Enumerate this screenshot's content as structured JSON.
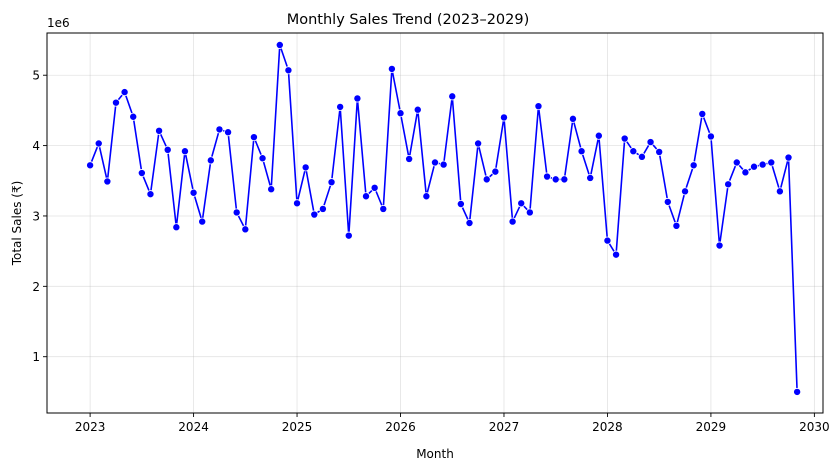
{
  "chart_data": {
    "type": "line",
    "title": "Monthly Sales Trend (2023–2029)",
    "xlabel": "Month",
    "ylabel": "Total Sales (₹)",
    "y_offset_label": "1e6",
    "x_tick_labels": [
      "2023",
      "2024",
      "2025",
      "2026",
      "2027",
      "2028",
      "2029",
      "2030"
    ],
    "y_tick_labels": [
      "1",
      "2",
      "3",
      "4",
      "5"
    ],
    "x_start": "2023-01",
    "xlim": [
      "2022-08",
      "2030-02"
    ],
    "ylim": [
      0.2,
      5.6
    ],
    "y_unit_multiplier": 1000000,
    "grid": true,
    "line_color": "#0000ff",
    "marker_color": "#0000ff",
    "series": [
      {
        "values": [
          3.72,
          4.03,
          3.49,
          4.61,
          4.76,
          4.41,
          3.61,
          3.31,
          4.21,
          3.94,
          2.84,
          3.92,
          3.33,
          2.92,
          3.79,
          4.23,
          4.19,
          3.05,
          2.81,
          4.12,
          3.82,
          3.38,
          5.43,
          5.07,
          3.18,
          3.69,
          3.02,
          3.1,
          3.48,
          4.55,
          2.72,
          4.67,
          3.28,
          3.4,
          3.1,
          5.09,
          4.46,
          3.81,
          4.51,
          3.28,
          3.76,
          3.73,
          4.7,
          3.17,
          2.9,
          4.03,
          3.52,
          3.63,
          4.4,
          2.92,
          3.18,
          3.05,
          4.56,
          3.56,
          3.52,
          3.52,
          4.38,
          3.92,
          3.54,
          4.14,
          2.65,
          2.45,
          4.1,
          3.92,
          3.84,
          4.05,
          3.91,
          3.2,
          2.86,
          3.35,
          3.72,
          4.45,
          4.13,
          2.58,
          3.45,
          3.76,
          3.62,
          3.7,
          3.73,
          3.76,
          3.35,
          3.83,
          0.5
        ]
      }
    ]
  }
}
